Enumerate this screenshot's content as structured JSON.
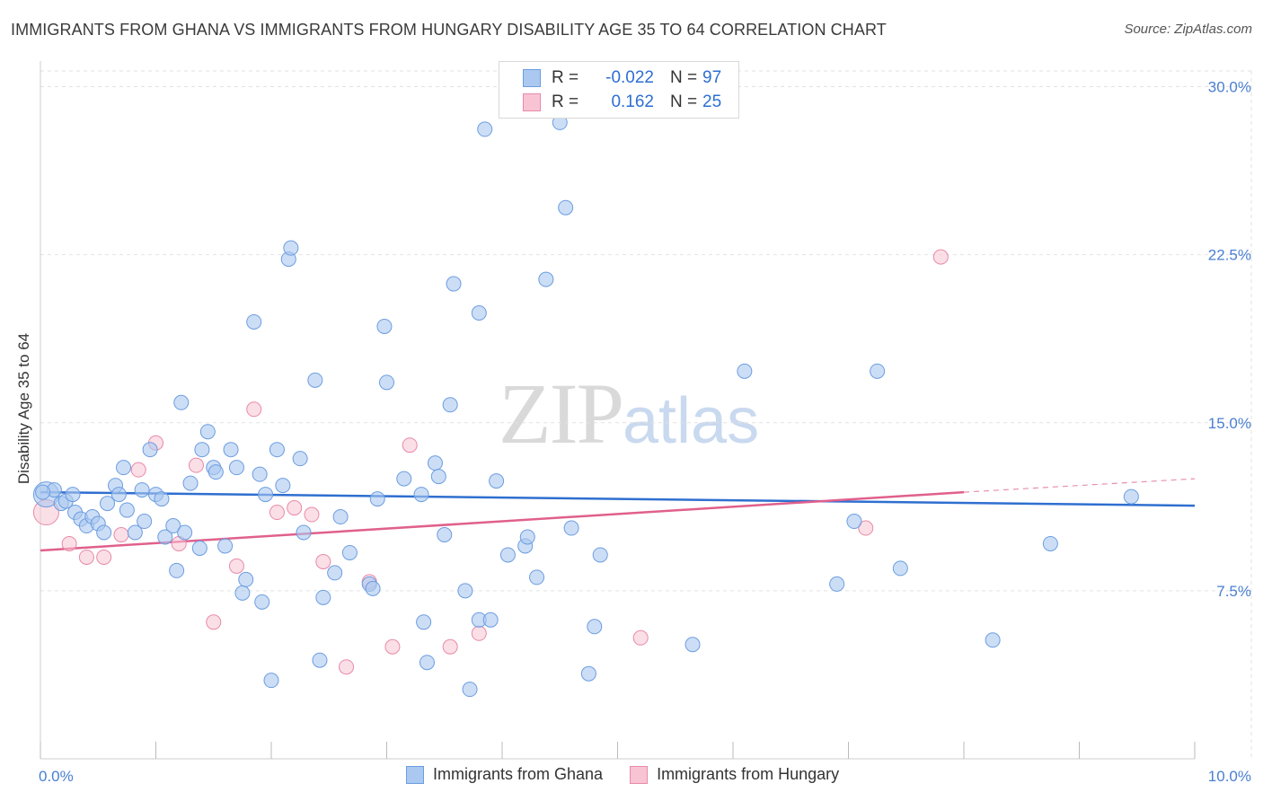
{
  "title": "IMMIGRANTS FROM GHANA VS IMMIGRANTS FROM HUNGARY DISABILITY AGE 35 TO 64 CORRELATION CHART",
  "source": "Source: ZipAtlas.com",
  "watermark": {
    "zip": "ZIP",
    "atlas": "atlas"
  },
  "legend": {
    "rows": [
      {
        "r_label": "R =",
        "r_value": "-0.022",
        "n_label": "N =",
        "n_value": "97"
      },
      {
        "r_label": "R =",
        "r_value": "0.162",
        "n_label": "N =",
        "n_value": "25"
      }
    ]
  },
  "bottom_legend": {
    "items": [
      {
        "label": "Immigrants from Ghana"
      },
      {
        "label": "Immigrants from Hungary"
      }
    ]
  },
  "colors": {
    "ghana_fill": "#aac8f0",
    "ghana_stroke": "#6c9de0",
    "ghana_line": "#2f6fd0",
    "hungary_fill": "#f8c4d4",
    "hungary_stroke": "#e88aa8",
    "hungary_line": "#e0608c",
    "grid": "#e2e2e2",
    "axis_text": "#4a7fd1"
  },
  "chart_data": {
    "type": "scatter",
    "title": "IMMIGRANTS FROM GHANA VS IMMIGRANTS FROM HUNGARY DISABILITY AGE 35 TO 64 CORRELATION CHART",
    "xlabel": "",
    "ylabel": "Disability Age 35 to 64",
    "xlim": [
      0,
      10
    ],
    "ylim": [
      0,
      30
    ],
    "x_tick_labels": [
      "0.0%",
      "10.0%"
    ],
    "y_ticks": [
      7.5,
      15.0,
      22.5,
      30.0
    ],
    "y_tick_labels": [
      "7.5%",
      "15.0%",
      "22.5%",
      "30.0%"
    ],
    "grid": true,
    "legend_position": "top-center",
    "series": [
      {
        "name": "Immigrants from Ghana",
        "r": -0.022,
        "n": 97,
        "trend": {
          "x": [
            0,
            10
          ],
          "y": [
            11.9,
            11.3
          ]
        },
        "points": [
          {
            "x": 0.05,
            "y": 11.8,
            "big": true
          },
          {
            "x": 0.12,
            "y": 12.0
          },
          {
            "x": 0.18,
            "y": 11.4
          },
          {
            "x": 0.22,
            "y": 11.5
          },
          {
            "x": 0.28,
            "y": 11.8
          },
          {
            "x": 0.3,
            "y": 11.0
          },
          {
            "x": 0.35,
            "y": 10.7
          },
          {
            "x": 0.4,
            "y": 10.4
          },
          {
            "x": 0.45,
            "y": 10.8
          },
          {
            "x": 0.5,
            "y": 10.5
          },
          {
            "x": 0.55,
            "y": 10.1
          },
          {
            "x": 0.58,
            "y": 11.4
          },
          {
            "x": 0.65,
            "y": 12.2
          },
          {
            "x": 0.68,
            "y": 11.8
          },
          {
            "x": 0.72,
            "y": 13.0
          },
          {
            "x": 0.75,
            "y": 11.1
          },
          {
            "x": 0.82,
            "y": 10.1
          },
          {
            "x": 0.88,
            "y": 12.0
          },
          {
            "x": 0.9,
            "y": 10.6
          },
          {
            "x": 0.95,
            "y": 13.8
          },
          {
            "x": 1.0,
            "y": 11.8
          },
          {
            "x": 1.05,
            "y": 11.6
          },
          {
            "x": 1.08,
            "y": 9.9
          },
          {
            "x": 1.15,
            "y": 10.4
          },
          {
            "x": 1.18,
            "y": 8.4
          },
          {
            "x": 1.22,
            "y": 15.9
          },
          {
            "x": 1.25,
            "y": 10.1
          },
          {
            "x": 1.3,
            "y": 12.3
          },
          {
            "x": 1.38,
            "y": 9.4
          },
          {
            "x": 1.4,
            "y": 13.8
          },
          {
            "x": 1.45,
            "y": 14.6
          },
          {
            "x": 1.5,
            "y": 13.0
          },
          {
            "x": 1.52,
            "y": 12.8
          },
          {
            "x": 1.6,
            "y": 9.5
          },
          {
            "x": 1.65,
            "y": 13.8
          },
          {
            "x": 1.7,
            "y": 13.0
          },
          {
            "x": 1.75,
            "y": 7.4
          },
          {
            "x": 1.78,
            "y": 8.0
          },
          {
            "x": 1.85,
            "y": 19.5
          },
          {
            "x": 1.9,
            "y": 12.7
          },
          {
            "x": 1.92,
            "y": 7.0
          },
          {
            "x": 1.95,
            "y": 11.8
          },
          {
            "x": 2.0,
            "y": 3.5
          },
          {
            "x": 2.05,
            "y": 13.8
          },
          {
            "x": 2.1,
            "y": 12.2
          },
          {
            "x": 2.15,
            "y": 22.3
          },
          {
            "x": 2.17,
            "y": 22.8
          },
          {
            "x": 2.25,
            "y": 13.4
          },
          {
            "x": 2.28,
            "y": 10.1
          },
          {
            "x": 2.38,
            "y": 16.9
          },
          {
            "x": 2.42,
            "y": 4.4
          },
          {
            "x": 2.45,
            "y": 7.2
          },
          {
            "x": 2.55,
            "y": 8.3
          },
          {
            "x": 2.6,
            "y": 10.8
          },
          {
            "x": 2.68,
            "y": 9.2
          },
          {
            "x": 2.85,
            "y": 7.8
          },
          {
            "x": 2.88,
            "y": 7.6
          },
          {
            "x": 2.92,
            "y": 11.6
          },
          {
            "x": 2.98,
            "y": 19.3
          },
          {
            "x": 3.0,
            "y": 16.8
          },
          {
            "x": 3.15,
            "y": 12.5
          },
          {
            "x": 3.3,
            "y": 11.8
          },
          {
            "x": 3.32,
            "y": 6.1
          },
          {
            "x": 3.35,
            "y": 4.3
          },
          {
            "x": 3.42,
            "y": 13.2
          },
          {
            "x": 3.45,
            "y": 12.6
          },
          {
            "x": 3.5,
            "y": 10.0
          },
          {
            "x": 3.55,
            "y": 15.8
          },
          {
            "x": 3.58,
            "y": 21.2
          },
          {
            "x": 3.68,
            "y": 7.5
          },
          {
            "x": 3.72,
            "y": 3.1
          },
          {
            "x": 3.8,
            "y": 6.2
          },
          {
            "x": 3.8,
            "y": 19.9
          },
          {
            "x": 3.85,
            "y": 28.1
          },
          {
            "x": 3.9,
            "y": 6.2
          },
          {
            "x": 3.95,
            "y": 12.4
          },
          {
            "x": 4.05,
            "y": 9.1
          },
          {
            "x": 4.2,
            "y": 9.5
          },
          {
            "x": 4.22,
            "y": 9.9
          },
          {
            "x": 4.3,
            "y": 8.1
          },
          {
            "x": 4.38,
            "y": 21.4
          },
          {
            "x": 4.5,
            "y": 28.4
          },
          {
            "x": 4.55,
            "y": 24.6
          },
          {
            "x": 4.6,
            "y": 10.3
          },
          {
            "x": 4.75,
            "y": 3.8
          },
          {
            "x": 4.8,
            "y": 5.9
          },
          {
            "x": 4.85,
            "y": 9.1
          },
          {
            "x": 5.65,
            "y": 5.1
          },
          {
            "x": 6.1,
            "y": 17.3
          },
          {
            "x": 6.9,
            "y": 7.8
          },
          {
            "x": 7.05,
            "y": 10.6
          },
          {
            "x": 7.25,
            "y": 17.3
          },
          {
            "x": 7.45,
            "y": 8.5
          },
          {
            "x": 8.25,
            "y": 5.3
          },
          {
            "x": 8.75,
            "y": 9.6
          },
          {
            "x": 9.45,
            "y": 11.7
          },
          {
            "x": 0.02,
            "y": 11.9
          }
        ]
      },
      {
        "name": "Immigrants from Hungary",
        "r": 0.162,
        "n": 25,
        "trend": {
          "x": [
            0,
            8.0
          ],
          "y": [
            9.3,
            11.9
          ]
        },
        "trend_dashed": {
          "x": [
            8.0,
            10.0
          ],
          "y": [
            11.9,
            12.5
          ]
        },
        "points": [
          {
            "x": 0.05,
            "y": 11.0,
            "big": true
          },
          {
            "x": 0.25,
            "y": 9.6
          },
          {
            "x": 0.4,
            "y": 9.0
          },
          {
            "x": 0.55,
            "y": 9.0
          },
          {
            "x": 0.7,
            "y": 10.0
          },
          {
            "x": 0.85,
            "y": 12.9
          },
          {
            "x": 1.0,
            "y": 14.1
          },
          {
            "x": 1.2,
            "y": 9.6
          },
          {
            "x": 1.35,
            "y": 13.1
          },
          {
            "x": 1.5,
            "y": 6.1
          },
          {
            "x": 1.7,
            "y": 8.6
          },
          {
            "x": 1.85,
            "y": 15.6
          },
          {
            "x": 2.05,
            "y": 11.0
          },
          {
            "x": 2.2,
            "y": 11.2
          },
          {
            "x": 2.35,
            "y": 10.9
          },
          {
            "x": 2.45,
            "y": 8.8
          },
          {
            "x": 2.65,
            "y": 4.1
          },
          {
            "x": 2.85,
            "y": 7.9
          },
          {
            "x": 3.05,
            "y": 5.0
          },
          {
            "x": 3.2,
            "y": 14.0
          },
          {
            "x": 3.55,
            "y": 5.0
          },
          {
            "x": 3.8,
            "y": 5.6
          },
          {
            "x": 5.2,
            "y": 5.4
          },
          {
            "x": 7.15,
            "y": 10.3
          },
          {
            "x": 7.8,
            "y": 22.4
          }
        ]
      }
    ]
  }
}
